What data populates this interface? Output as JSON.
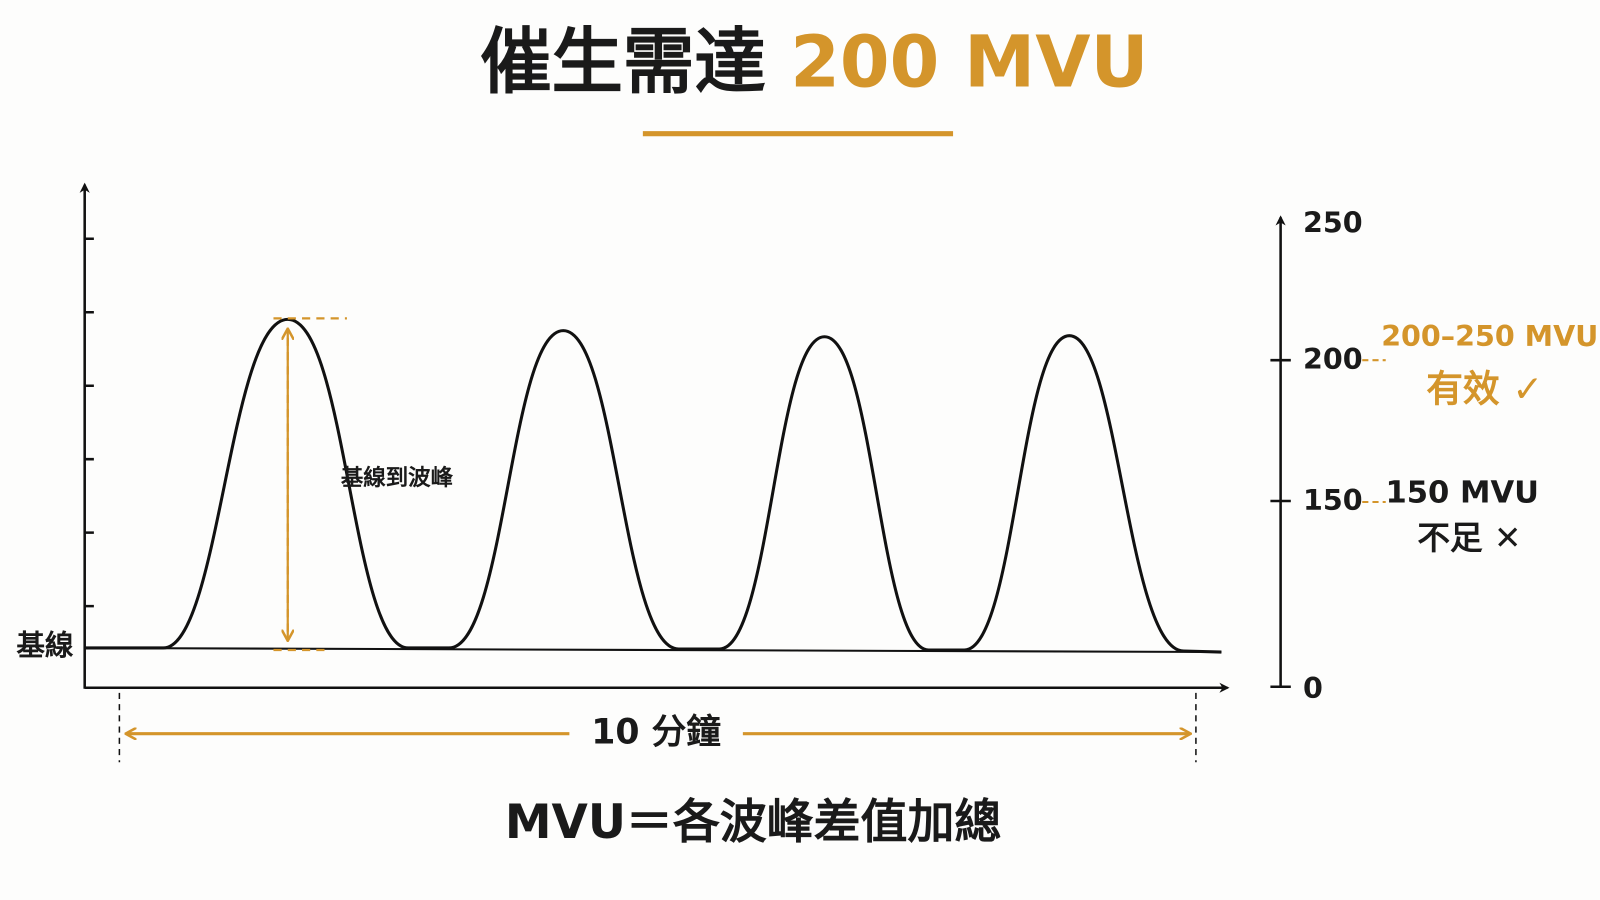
{
  "title": {
    "main": "催生需達",
    "highlight": "200 MVU"
  },
  "peak_label": "基線到波峰",
  "baseline_label": "基線",
  "duration_label": "10 分鐘",
  "scale_ticks": [
    250,
    200,
    150,
    0
  ],
  "zones": [
    {
      "label": "200–250 MVU",
      "verdict": "有效 ✓"
    },
    {
      "label": "150 MVU",
      "verdict": "不足 ✕"
    }
  ],
  "formula": "MVU＝各波峰差值加總"
}
